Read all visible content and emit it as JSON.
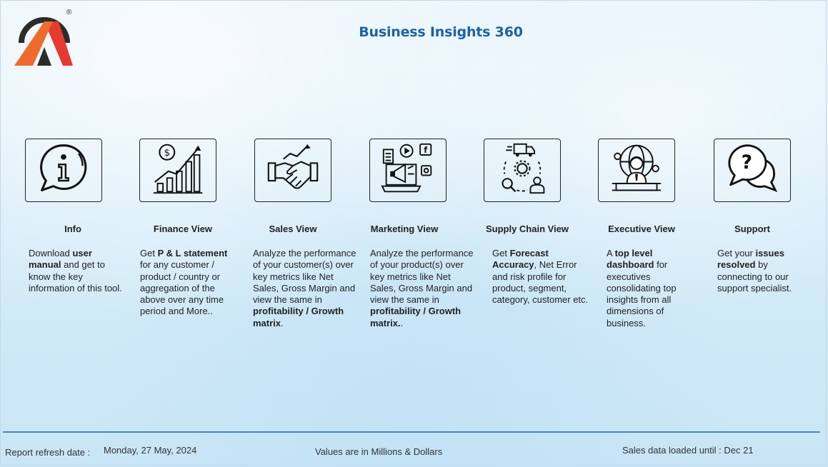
{
  "header": {
    "title": "Business Insights 360"
  },
  "logo": {
    "registered_mark": "®",
    "colors": {
      "orange": "#f06a2e",
      "red": "#e63a2e",
      "dark": "#2b2b2b"
    }
  },
  "tiles": [
    {
      "id": "info",
      "icon": "info-icon",
      "label": "Info",
      "description": [
        {
          "t": "Download "
        },
        {
          "b": "user manual"
        },
        {
          "t": " and get to know the key information of this tool."
        }
      ]
    },
    {
      "id": "finance",
      "icon": "finance-growth-icon",
      "label": "Finance View",
      "description": [
        {
          "t": "Get  "
        },
        {
          "b": "P & L statement"
        },
        {
          "t": " for any customer / product / country or aggregation of the above over any time period and More.."
        }
      ]
    },
    {
      "id": "sales",
      "icon": "handshake-icon",
      "label": "Sales View",
      "description": [
        {
          "t": "Analyze the performance of your customer(s) over key metrics like Net Sales, Gross Margin and view the same in "
        },
        {
          "b": "profitability / Growth matrix"
        },
        {
          "t": "."
        }
      ]
    },
    {
      "id": "marketing",
      "icon": "marketing-megaphone-icon",
      "label": "Marketing View",
      "description": [
        {
          "t": "Analyze the performance of your product(s) over key metrics like Net Sales, Gross Margin and view the same in "
        },
        {
          "b": "profitability / Growth matrix."
        },
        {
          "t": "."
        }
      ]
    },
    {
      "id": "supply",
      "icon": "supply-chain-icon",
      "label": "Supply Chain View",
      "description": [
        {
          "t": "Get "
        },
        {
          "b": "Forecast Accuracy"
        },
        {
          "t": ", Net Error and risk profile for product, segment, category, customer etc."
        }
      ]
    },
    {
      "id": "executive",
      "icon": "executive-icon",
      "label": "Executive View",
      "description": [
        {
          "t": "A "
        },
        {
          "b": "top level dashboard"
        },
        {
          "t": " for executives consolidating top insights from all dimensions of business."
        }
      ]
    },
    {
      "id": "support",
      "icon": "support-chat-icon",
      "label": "Support",
      "description": [
        {
          "t": "Get your "
        },
        {
          "b": "issues resolved"
        },
        {
          "t": " by connecting to our support specialist."
        }
      ]
    }
  ],
  "footer": {
    "refresh_label": "Report refresh date :",
    "refresh_date": "Monday, 27 May, 2024",
    "units_note": "Values are in Millions & Dollars",
    "sales_loaded": "Sales data loaded until : Dec 21"
  }
}
